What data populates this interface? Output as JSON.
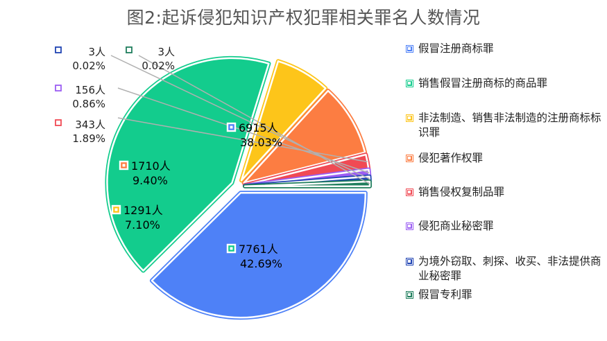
{
  "title": "图2:起诉侵犯知识产权犯罪相关罪名人数情况",
  "chart_data": {
    "type": "pie",
    "title": "图2:起诉侵犯知识产权犯罪相关罪名人数情况",
    "slices": [
      {
        "name": "假冒注册商标罪",
        "count_label": "6915人",
        "value": 6915,
        "percent": "38.03%",
        "color": "#4e81f7",
        "label_color": "#000000"
      },
      {
        "name": "销售假冒注册商标的商品罪",
        "count_label": "7761人",
        "value": 7761,
        "percent": "42.69%",
        "color": "#13cc8d",
        "label_color": "#000000"
      },
      {
        "name": "非法制造、销售非法制造的注册商标标识罪",
        "count_label": "1291人",
        "value": 1291,
        "percent": "7.10%",
        "color": "#fdc51a",
        "label_color": "#000000"
      },
      {
        "name": "侵犯著作权罪",
        "count_label": "1710人",
        "value": 1710,
        "percent": "9.40%",
        "color": "#fc7d42",
        "label_color": "#000000"
      },
      {
        "name": "销售侵权复制品罪",
        "count_label": "343人",
        "value": 343,
        "percent": "1.89%",
        "color": "#f04a54",
        "label_color": "#222222"
      },
      {
        "name": "侵犯商业秘密罪",
        "count_label": "156人",
        "value": 156,
        "percent": "0.86%",
        "color": "#9b5df3",
        "label_color": "#222222"
      },
      {
        "name": "为境外窃取、刺探、收买、非法提供商业秘密罪",
        "count_label": "3人",
        "value": 3,
        "percent": "0.02%",
        "color": "#1f43b3",
        "label_color": "#222222"
      },
      {
        "name": "假冒专利罪",
        "count_label": "3人",
        "value": 3,
        "percent": "0.02%",
        "color": "#1f7e5c",
        "label_color": "#222222"
      }
    ],
    "legend_position": "right"
  }
}
